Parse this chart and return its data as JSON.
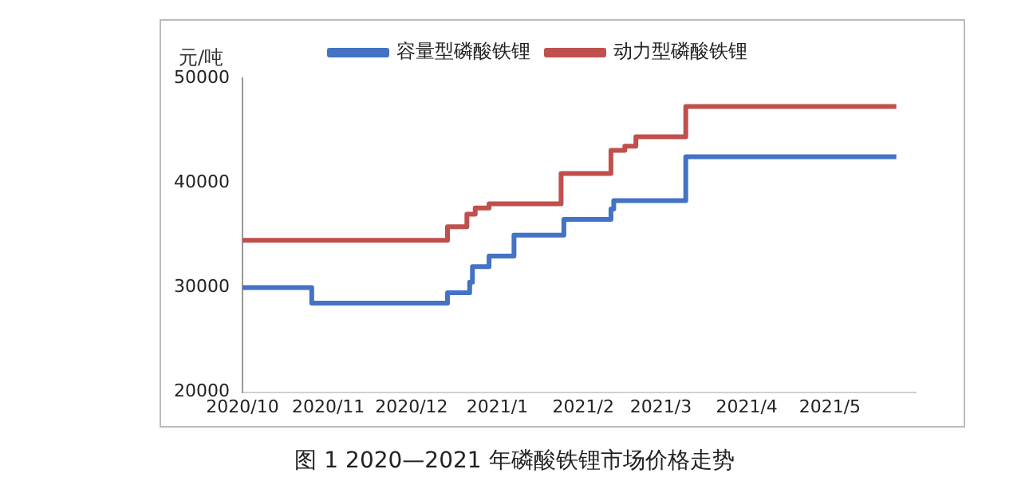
{
  "chart_data": {
    "type": "step",
    "ylabel": "元/吨",
    "annotations": [
      "图 1  2020—2021 年磷酸铁锂市场价格走势"
    ],
    "legend": "top",
    "grid": false,
    "marker": "none",
    "line_style": "solid",
    "xlim": [
      "2020-10-01",
      "2021-06-01"
    ],
    "xticks": [
      {
        "value": "2020-10-01",
        "label": "2020/10"
      },
      {
        "value": "2020-11-01",
        "label": "2020/11"
      },
      {
        "value": "2020-12-01",
        "label": "2020/12"
      },
      {
        "value": "2021-01-01",
        "label": "2021/1"
      },
      {
        "value": "2021-02-01",
        "label": "2021/2"
      },
      {
        "value": "2021-03-01",
        "label": "2021/3"
      },
      {
        "value": "2021-04-01",
        "label": "2021/4"
      },
      {
        "value": "2021-05-01",
        "label": "2021/5"
      }
    ],
    "ylim": [
      20000,
      50000
    ],
    "yticks": [
      20000,
      30000,
      40000,
      50000
    ],
    "series": [
      {
        "name": "容量型磷酸铁锂",
        "color": "#4472c4",
        "x": [
          "2020-10-01",
          "2020-10-26",
          "2020-12-14",
          "2020-12-22",
          "2020-12-23",
          "2020-12-29",
          "2021-01-07",
          "2021-01-25",
          "2021-02-11",
          "2021-02-12",
          "2021-03-10",
          "2021-05-25"
        ],
        "values": [
          30000,
          28500,
          29500,
          30500,
          32000,
          33000,
          35000,
          36500,
          37500,
          38300,
          42500,
          42500
        ]
      },
      {
        "name": "动力型磷酸铁锂",
        "color": "#c0504d",
        "x": [
          "2020-10-01",
          "2020-12-14",
          "2020-12-21",
          "2020-12-24",
          "2020-12-29",
          "2021-01-24",
          "2021-02-11",
          "2021-02-16",
          "2021-02-20",
          "2021-03-10",
          "2021-05-25"
        ],
        "values": [
          34500,
          35800,
          37000,
          37600,
          38000,
          40900,
          43100,
          43500,
          44400,
          47300,
          47300
        ]
      }
    ]
  }
}
